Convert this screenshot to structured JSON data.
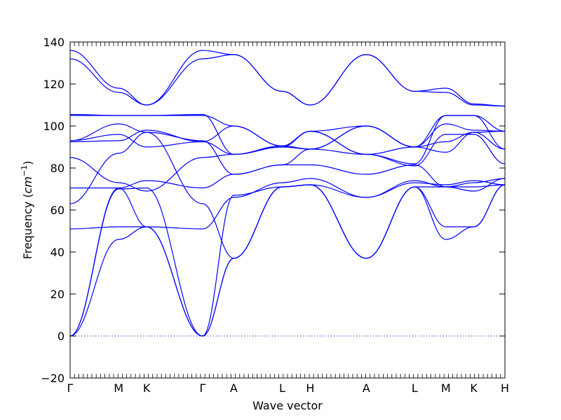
{
  "chart_data": {
    "type": "line",
    "title": "",
    "xlabel": "Wave vector",
    "ylabel": "Frequency",
    "ylabel_unit": "cm",
    "ylabel_unit_exp": "−1",
    "ylim": [
      -20,
      140
    ],
    "yticks": [
      -20,
      0,
      20,
      40,
      60,
      80,
      100,
      120,
      140
    ],
    "grid": false,
    "legend": "none",
    "line_color": "#0000ff",
    "zero_line_style": "dotted",
    "xticks": [
      {
        "label": "Γ",
        "x": 0.0
      },
      {
        "label": "M",
        "x": 0.577
      },
      {
        "label": "K",
        "x": 0.91
      },
      {
        "label": "Γ",
        "x": 1.577
      },
      {
        "label": "A",
        "x": 1.947
      },
      {
        "label": "L",
        "x": 2.524
      },
      {
        "label": "H",
        "x": 2.857
      },
      {
        "label": "A",
        "x": 3.524
      },
      {
        "label": "L",
        "x": 4.1
      },
      {
        "label": "M",
        "x": 4.47
      },
      {
        "label": "K",
        "x": 4.803
      },
      {
        "label": "H",
        "x": 5.173
      }
    ],
    "xlim": [
      0,
      5.173
    ],
    "series": [
      {
        "x": [
          0,
          0.577,
          0.91,
          1.577,
          1.947,
          2.524,
          2.857,
          3.524,
          4.1,
          4.47,
          4.803,
          5.173
        ],
        "y": [
          0,
          70,
          70.5,
          0,
          37,
          71,
          72,
          37,
          71,
          71,
          71,
          72
        ]
      },
      {
        "x": [
          0,
          0.577,
          0.91,
          1.577,
          1.947,
          2.524,
          2.857,
          3.524,
          4.1,
          4.47,
          4.803,
          5.173
        ],
        "y": [
          0,
          46,
          52,
          0,
          37,
          71,
          72,
          37,
          71,
          46,
          52,
          72
        ]
      },
      {
        "x": [
          0,
          0.577,
          0.91,
          1.577,
          1.947,
          2.524,
          2.857,
          3.524,
          4.1,
          4.47,
          4.803,
          5.173
        ],
        "y": [
          0,
          70.5,
          52,
          0,
          67,
          71,
          72,
          37,
          71,
          52,
          52,
          72
        ]
      },
      {
        "x": [
          0,
          0.577,
          0.91,
          1.577,
          1.947,
          2.524,
          2.857,
          3.524,
          4.1,
          4.47,
          4.803,
          5.173
        ],
        "y": [
          51,
          52,
          52,
          51,
          66,
          73,
          75,
          66,
          73,
          72,
          74,
          72
        ]
      },
      {
        "x": [
          0,
          0.577,
          0.91,
          1.577,
          1.947,
          2.524,
          2.857,
          3.524,
          4.1,
          4.47,
          4.803,
          5.173
        ],
        "y": [
          63,
          87,
          97,
          63,
          37,
          71,
          72,
          66,
          74,
          71,
          69,
          75
        ]
      },
      {
        "x": [
          0,
          0.577,
          0.91,
          1.577,
          1.947,
          2.524,
          2.857,
          3.524,
          4.1,
          4.47,
          4.803,
          5.173
        ],
        "y": [
          70.5,
          70.5,
          74,
          70.5,
          77,
          81.5,
          81.5,
          77,
          81.5,
          71,
          73,
          75
        ]
      },
      {
        "x": [
          0,
          0.577,
          0.91,
          1.577,
          1.947,
          2.524,
          2.857,
          3.524,
          4.1,
          4.47,
          4.803,
          5.173
        ],
        "y": [
          85,
          73,
          69,
          85,
          86.5,
          90,
          89,
          86.5,
          81,
          96,
          96,
          82
        ]
      },
      {
        "x": [
          0,
          0.577,
          0.91,
          1.577,
          1.947,
          2.524,
          2.857,
          3.524,
          4.1,
          4.47,
          4.803,
          5.173
        ],
        "y": [
          92.5,
          93,
          98,
          92.5,
          86.5,
          90.5,
          97.5,
          86.5,
          90,
          87.5,
          97,
          89
        ]
      },
      {
        "x": [
          0,
          0.577,
          0.91,
          1.577,
          1.947,
          2.524,
          2.857,
          3.524,
          4.1,
          4.47,
          4.803,
          5.173
        ],
        "y": [
          93,
          101,
          97,
          93,
          77,
          81.5,
          89,
          100,
          90,
          101,
          98,
          97.5
        ]
      },
      {
        "x": [
          0,
          0.577,
          0.91,
          1.577,
          1.947,
          2.524,
          2.857,
          3.524,
          4.1,
          4.47,
          4.803,
          5.173
        ],
        "y": [
          93,
          96,
          90,
          92.5,
          100,
          90.5,
          97.5,
          100,
          90,
          92.5,
          97,
          97.5
        ]
      },
      {
        "x": [
          0,
          0.577,
          0.91,
          1.577,
          1.947,
          2.524,
          2.857,
          3.524,
          4.1,
          4.47,
          4.803,
          5.173
        ],
        "y": [
          105,
          105,
          105,
          105,
          100,
          90.5,
          89,
          100,
          90,
          105,
          105,
          89
        ]
      },
      {
        "x": [
          0,
          0.577,
          0.91,
          1.577,
          1.947,
          2.524,
          2.857,
          3.524,
          4.1,
          4.47,
          4.803,
          5.173
        ],
        "y": [
          105.5,
          105,
          105,
          105.5,
          86.5,
          90,
          97.5,
          86.5,
          82,
          105,
          105,
          97.5
        ]
      },
      {
        "x": [
          0,
          0.577,
          0.91,
          1.577,
          1.947,
          2.524,
          2.857,
          3.524,
          4.1,
          4.47,
          4.803,
          5.173
        ],
        "y": [
          132,
          116,
          110,
          132,
          134,
          116.5,
          110,
          134,
          116.5,
          116,
          110,
          109.5
        ]
      },
      {
        "x": [
          0,
          0.577,
          0.91,
          1.577,
          1.947,
          2.524,
          2.857,
          3.524,
          4.1,
          4.47,
          4.803,
          5.173
        ],
        "y": [
          136,
          118,
          110,
          136,
          134,
          116.5,
          110,
          134,
          116.5,
          118,
          110.5,
          109.5
        ]
      }
    ]
  }
}
